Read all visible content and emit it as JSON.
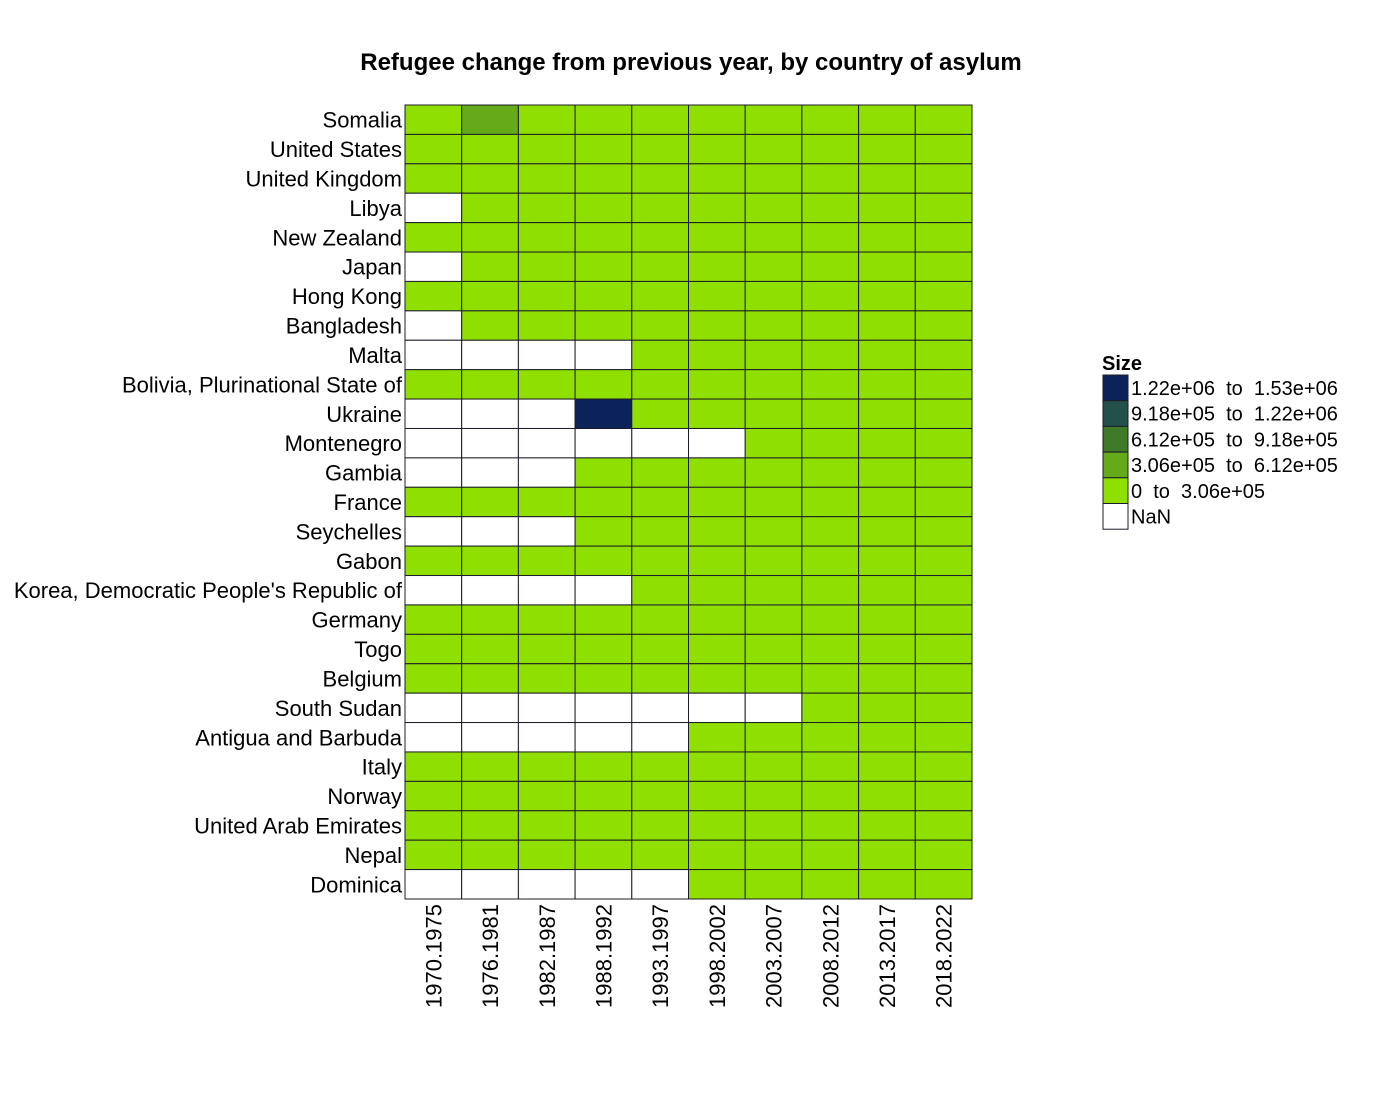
{
  "chart_data": {
    "type": "heatmap",
    "title": "Refugee change from previous year, by country of asylum",
    "x": [
      "1970.1975",
      "1976.1981",
      "1982.1987",
      "1988.1992",
      "1993.1997",
      "1998.2002",
      "2003.2007",
      "2008.2012",
      "2013.2017",
      "2018.2022"
    ],
    "y": [
      "Somalia",
      "United States",
      "United Kingdom",
      "Libya",
      "New Zealand",
      "Japan",
      "Hong Kong",
      "Bangladesh",
      "Malta",
      "Bolivia, Plurinational State of",
      "Ukraine",
      "Montenegro",
      "Gambia",
      "France",
      "Seychelles",
      "Gabon",
      "Korea, Democratic People's Republic of",
      "Germany",
      "Togo",
      "Belgium",
      "South Sudan",
      "Antigua and Barbuda",
      "Italy",
      "Norway",
      "United Arab Emirates",
      "Nepal",
      "Dominica"
    ],
    "bins": [
      {
        "label": "0  to  3.06e+05",
        "range": [
          0,
          306000
        ],
        "color": "#8FE000"
      },
      {
        "label": "3.06e+05  to  6.12e+05",
        "range": [
          306000,
          612000
        ],
        "color": "#64AA19"
      },
      {
        "label": "6.12e+05  to  9.18e+05",
        "range": [
          612000,
          918000
        ],
        "color": "#3F7A28"
      },
      {
        "label": "9.18e+05  to  1.22e+06",
        "range": [
          918000,
          1220000
        ],
        "color": "#24504A"
      },
      {
        "label": "1.22e+06  to  1.53e+06",
        "range": [
          1220000,
          1530000
        ],
        "color": "#0B2359"
      }
    ],
    "legend": {
      "title": "Size",
      "placement": "right",
      "order": "highest bin first, NaN last",
      "nan_label": "NaN",
      "nan_color": "#FFFFFF"
    },
    "value_bin": [
      [
        0,
        1,
        0,
        0,
        0,
        0,
        0,
        0,
        0,
        0
      ],
      [
        0,
        0,
        0,
        0,
        0,
        0,
        0,
        0,
        0,
        0
      ],
      [
        0,
        0,
        0,
        0,
        0,
        0,
        0,
        0,
        0,
        0
      ],
      [
        null,
        0,
        0,
        0,
        0,
        0,
        0,
        0,
        0,
        0
      ],
      [
        0,
        0,
        0,
        0,
        0,
        0,
        0,
        0,
        0,
        0
      ],
      [
        null,
        0,
        0,
        0,
        0,
        0,
        0,
        0,
        0,
        0
      ],
      [
        0,
        0,
        0,
        0,
        0,
        0,
        0,
        0,
        0,
        0
      ],
      [
        null,
        0,
        0,
        0,
        0,
        0,
        0,
        0,
        0,
        0
      ],
      [
        null,
        null,
        null,
        null,
        0,
        0,
        0,
        0,
        0,
        0
      ],
      [
        0,
        0,
        0,
        0,
        0,
        0,
        0,
        0,
        0,
        0
      ],
      [
        null,
        null,
        null,
        4,
        0,
        0,
        0,
        0,
        0,
        0
      ],
      [
        null,
        null,
        null,
        null,
        null,
        null,
        0,
        0,
        0,
        0
      ],
      [
        null,
        null,
        null,
        0,
        0,
        0,
        0,
        0,
        0,
        0
      ],
      [
        0,
        0,
        0,
        0,
        0,
        0,
        0,
        0,
        0,
        0
      ],
      [
        null,
        null,
        null,
        0,
        0,
        0,
        0,
        0,
        0,
        0
      ],
      [
        0,
        0,
        0,
        0,
        0,
        0,
        0,
        0,
        0,
        0
      ],
      [
        null,
        null,
        null,
        null,
        0,
        0,
        0,
        0,
        0,
        0
      ],
      [
        0,
        0,
        0,
        0,
        0,
        0,
        0,
        0,
        0,
        0
      ],
      [
        0,
        0,
        0,
        0,
        0,
        0,
        0,
        0,
        0,
        0
      ],
      [
        0,
        0,
        0,
        0,
        0,
        0,
        0,
        0,
        0,
        0
      ],
      [
        null,
        null,
        null,
        null,
        null,
        null,
        null,
        0,
        0,
        0
      ],
      [
        null,
        null,
        null,
        null,
        null,
        0,
        0,
        0,
        0,
        0
      ],
      [
        0,
        0,
        0,
        0,
        0,
        0,
        0,
        0,
        0,
        0
      ],
      [
        0,
        0,
        0,
        0,
        0,
        0,
        0,
        0,
        0,
        0
      ],
      [
        0,
        0,
        0,
        0,
        0,
        0,
        0,
        0,
        0,
        0
      ],
      [
        0,
        0,
        0,
        0,
        0,
        0,
        0,
        0,
        0,
        0
      ],
      [
        null,
        null,
        null,
        null,
        null,
        0,
        0,
        0,
        0,
        0
      ]
    ]
  }
}
